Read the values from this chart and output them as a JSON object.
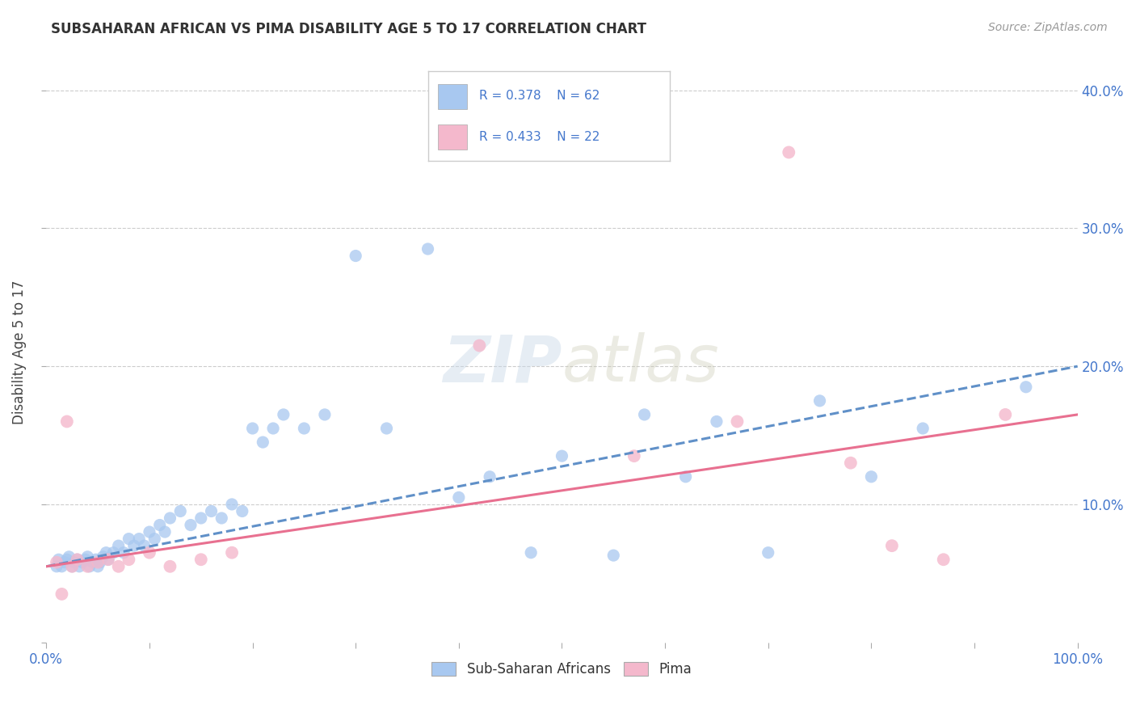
{
  "title": "SUBSAHARAN AFRICAN VS PIMA DISABILITY AGE 5 TO 17 CORRELATION CHART",
  "source": "Source: ZipAtlas.com",
  "ylabel": "Disability Age 5 to 17",
  "xlim": [
    0.0,
    1.0
  ],
  "ylim": [
    0.0,
    0.42
  ],
  "x_ticks": [
    0.0,
    0.1,
    0.2,
    0.3,
    0.4,
    0.5,
    0.6,
    0.7,
    0.8,
    0.9,
    1.0
  ],
  "y_ticks": [
    0.0,
    0.1,
    0.2,
    0.3,
    0.4
  ],
  "blue_R": 0.378,
  "blue_N": 62,
  "pink_R": 0.433,
  "pink_N": 22,
  "legend_label_blue": "Sub-Saharan Africans",
  "legend_label_pink": "Pima",
  "blue_color": "#a8c8f0",
  "pink_color": "#f4b8cc",
  "blue_line_color": "#6090c8",
  "pink_line_color": "#e87090",
  "background_color": "#ffffff",
  "watermark_text": "ZIPatlas",
  "blue_scatter_x": [
    0.01,
    0.012,
    0.015,
    0.018,
    0.02,
    0.022,
    0.025,
    0.027,
    0.03,
    0.032,
    0.035,
    0.038,
    0.04,
    0.042,
    0.045,
    0.048,
    0.05,
    0.052,
    0.055,
    0.058,
    0.06,
    0.065,
    0.07,
    0.075,
    0.08,
    0.085,
    0.09,
    0.095,
    0.1,
    0.105,
    0.11,
    0.115,
    0.12,
    0.13,
    0.14,
    0.15,
    0.16,
    0.17,
    0.18,
    0.19,
    0.2,
    0.21,
    0.22,
    0.23,
    0.25,
    0.27,
    0.3,
    0.33,
    0.37,
    0.4,
    0.43,
    0.47,
    0.5,
    0.55,
    0.58,
    0.62,
    0.65,
    0.7,
    0.75,
    0.8,
    0.85,
    0.95
  ],
  "blue_scatter_y": [
    0.055,
    0.06,
    0.055,
    0.058,
    0.06,
    0.062,
    0.055,
    0.058,
    0.06,
    0.055,
    0.058,
    0.06,
    0.062,
    0.055,
    0.058,
    0.06,
    0.055,
    0.058,
    0.062,
    0.065,
    0.06,
    0.065,
    0.07,
    0.065,
    0.075,
    0.07,
    0.075,
    0.07,
    0.08,
    0.075,
    0.085,
    0.08,
    0.09,
    0.095,
    0.085,
    0.09,
    0.095,
    0.09,
    0.1,
    0.095,
    0.155,
    0.145,
    0.155,
    0.165,
    0.155,
    0.165,
    0.28,
    0.155,
    0.285,
    0.105,
    0.12,
    0.065,
    0.135,
    0.063,
    0.165,
    0.12,
    0.16,
    0.065,
    0.175,
    0.12,
    0.155,
    0.185
  ],
  "pink_scatter_x": [
    0.01,
    0.015,
    0.02,
    0.025,
    0.03,
    0.04,
    0.05,
    0.06,
    0.07,
    0.08,
    0.1,
    0.12,
    0.15,
    0.18,
    0.42,
    0.57,
    0.67,
    0.72,
    0.78,
    0.82,
    0.87,
    0.93
  ],
  "pink_scatter_y": [
    0.058,
    0.035,
    0.16,
    0.055,
    0.06,
    0.055,
    0.058,
    0.06,
    0.055,
    0.06,
    0.065,
    0.055,
    0.06,
    0.065,
    0.215,
    0.135,
    0.16,
    0.355,
    0.13,
    0.07,
    0.06,
    0.165
  ],
  "blue_line_x0": 0.0,
  "blue_line_y0": 0.055,
  "blue_line_x1": 1.0,
  "blue_line_y1": 0.2,
  "pink_line_x0": 0.0,
  "pink_line_y0": 0.055,
  "pink_line_x1": 1.0,
  "pink_line_y1": 0.165
}
